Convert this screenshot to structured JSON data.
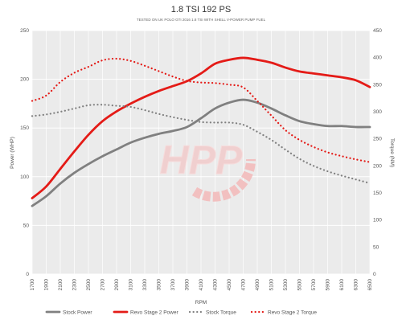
{
  "chart_data": {
    "type": "line",
    "title": "1.8 TSI 192 PS",
    "subtitle": "TESTED ON UK POLO GTI 2016 1.8 TSI WITH SHELL V-POWER PUMP FUEL",
    "xlabel": "RPM",
    "ylabel_left": "Power (WHP)",
    "ylabel_right": "Torque (NM)",
    "ylim_left": [
      0,
      250
    ],
    "ylim_right": [
      0,
      450
    ],
    "xlim": [
      1700,
      6500
    ],
    "grid": true,
    "legend_position": "bottom",
    "logo_text": "HPP",
    "x_ticks": [
      1700,
      1900,
      2100,
      2300,
      2500,
      2700,
      2900,
      3100,
      3300,
      3500,
      3700,
      3900,
      4100,
      4300,
      4500,
      4700,
      4900,
      5100,
      5300,
      5500,
      5700,
      5900,
      6100,
      6300,
      6500
    ],
    "y_ticks_left": [
      0,
      50,
      100,
      150,
      200,
      250
    ],
    "y_ticks_right": [
      0,
      50,
      100,
      150,
      200,
      250,
      300,
      350,
      400,
      450
    ],
    "x": [
      1700,
      1900,
      2100,
      2300,
      2500,
      2700,
      2900,
      3100,
      3300,
      3500,
      3700,
      3900,
      4100,
      4300,
      4500,
      4700,
      4900,
      5100,
      5300,
      5500,
      5700,
      5900,
      6100,
      6300,
      6500
    ],
    "series": [
      {
        "name": "Stock Power",
        "axis": "left",
        "style": "solid",
        "color": "#808080",
        "values": [
          70,
          80,
          93,
          104,
          113,
          121,
          128,
          135,
          140,
          144,
          147,
          151,
          160,
          170,
          176,
          179,
          176,
          170,
          163,
          157,
          154,
          152,
          152,
          151,
          151
        ]
      },
      {
        "name": "Revo Stage 2 Power",
        "axis": "left",
        "style": "solid",
        "color": "#e41b17",
        "values": [
          78,
          90,
          108,
          126,
          143,
          157,
          167,
          175,
          182,
          188,
          193,
          198,
          206,
          216,
          220,
          222,
          220,
          217,
          212,
          208,
          206,
          204,
          202,
          199,
          192
        ]
      },
      {
        "name": "Stock Torque",
        "axis": "right",
        "style": "dotted",
        "color": "#808080",
        "values": [
          292,
          295,
          300,
          306,
          312,
          313,
          311,
          309,
          303,
          296,
          290,
          285,
          281,
          280,
          280,
          276,
          263,
          248,
          230,
          213,
          200,
          190,
          182,
          175,
          168
        ]
      },
      {
        "name": "Revo Stage 2 Torque",
        "axis": "right",
        "style": "dotted",
        "color": "#e41b17",
        "values": [
          320,
          330,
          355,
          372,
          383,
          395,
          398,
          394,
          385,
          375,
          365,
          357,
          354,
          353,
          350,
          345,
          320,
          293,
          266,
          248,
          235,
          225,
          218,
          212,
          207
        ]
      }
    ]
  }
}
